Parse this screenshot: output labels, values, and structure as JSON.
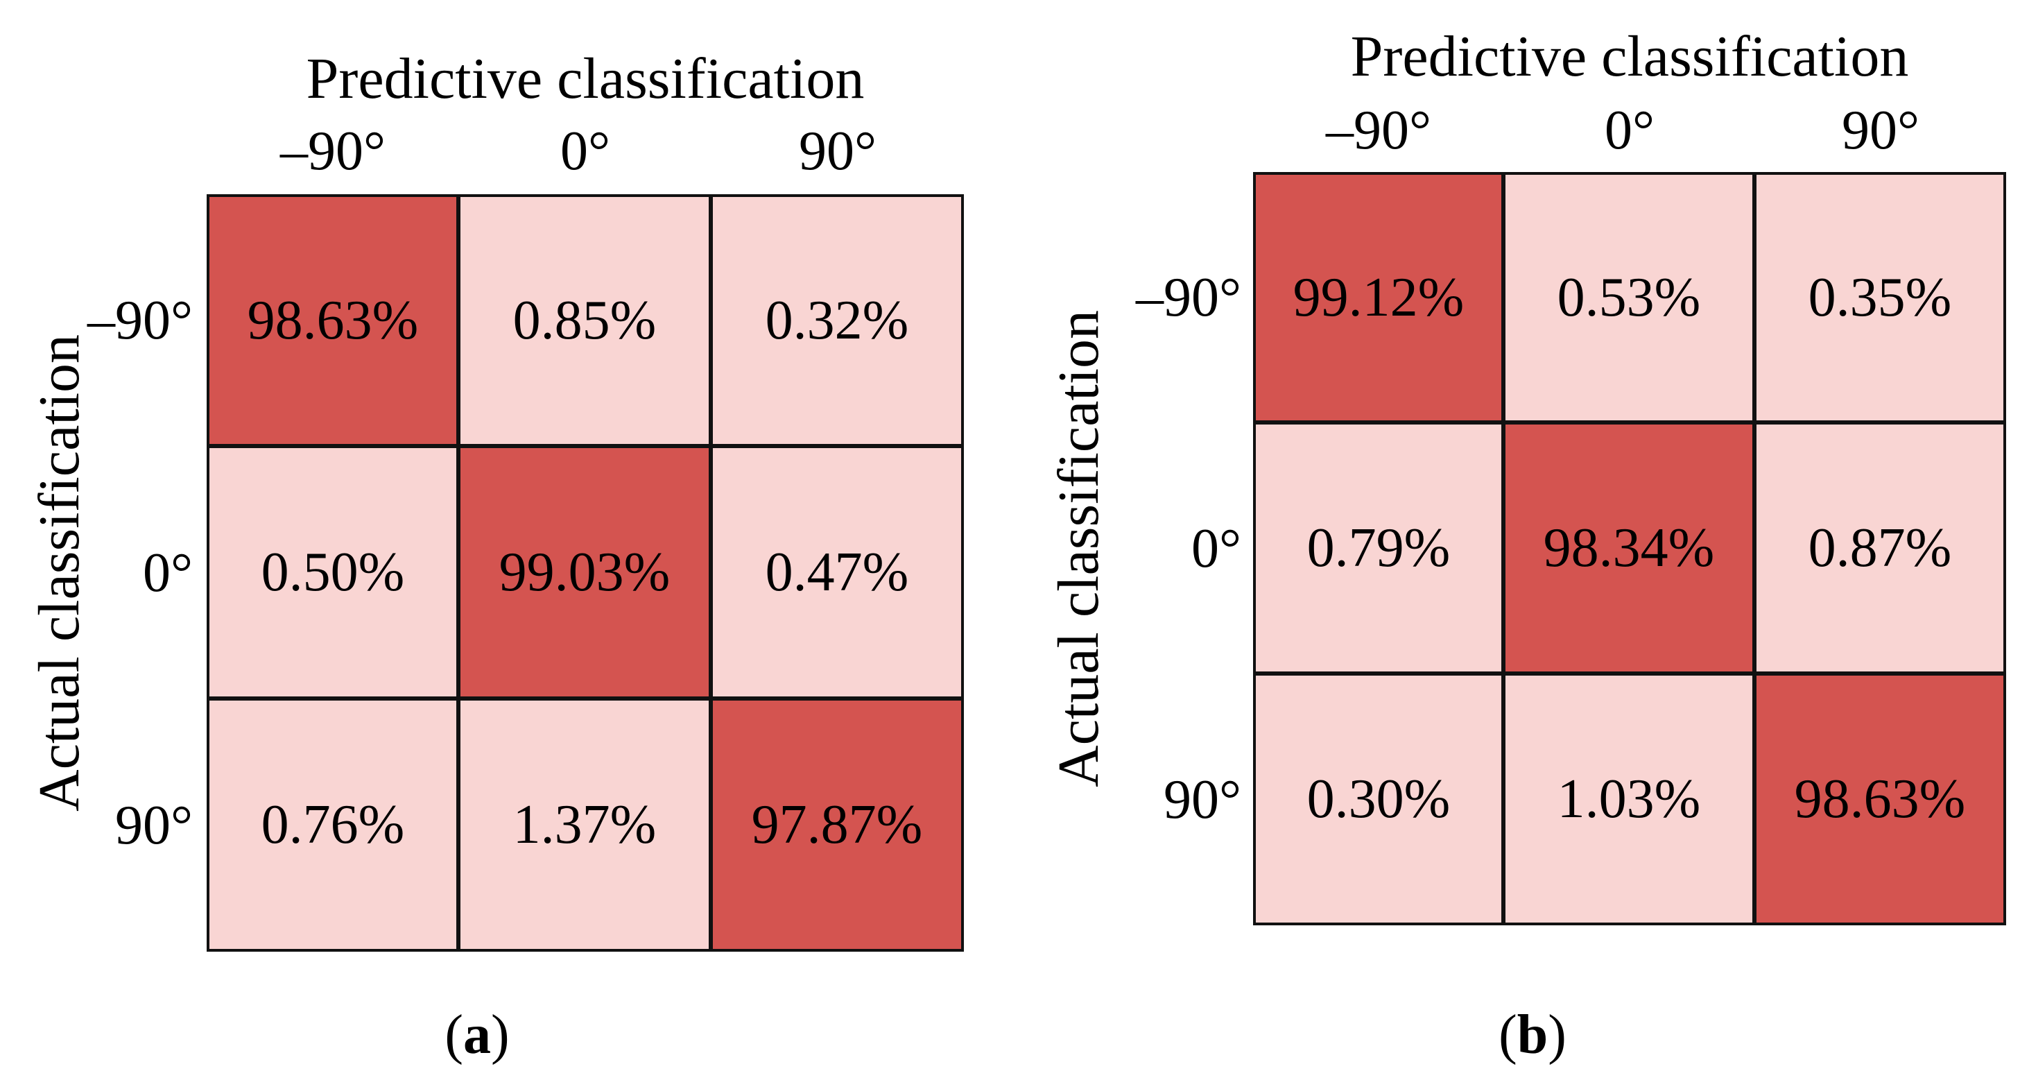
{
  "chart_data": [
    {
      "type": "heatmap",
      "title": "",
      "xlabel": "Predictive classification",
      "ylabel": "Actual classification",
      "x_categories": [
        "–90°",
        "0°",
        "90°"
      ],
      "y_categories": [
        "–90°",
        "0°",
        "90°"
      ],
      "values": [
        [
          "98.63%",
          "0.85%",
          "0.32%"
        ],
        [
          "0.50%",
          "99.03%",
          "0.47%"
        ],
        [
          "0.76%",
          "1.37%",
          "97.87%"
        ]
      ],
      "caption": {
        "open": "(",
        "letter": "a",
        "close": ")"
      }
    },
    {
      "type": "heatmap",
      "title": "",
      "xlabel": "Predictive classification",
      "ylabel": "Actual classification",
      "x_categories": [
        "–90°",
        "0°",
        "90°"
      ],
      "y_categories": [
        "–90°",
        "0°",
        "90°"
      ],
      "values": [
        [
          "99.12%",
          "0.53%",
          "0.35%"
        ],
        [
          "0.79%",
          "98.34%",
          "0.87%"
        ],
        [
          "0.30%",
          "1.03%",
          "98.63%"
        ]
      ],
      "caption": {
        "open": "(",
        "letter": "b",
        "close": ")"
      }
    }
  ],
  "colors": {
    "high": "#d45450",
    "low": "#f9d5d3",
    "border": "#111111"
  }
}
